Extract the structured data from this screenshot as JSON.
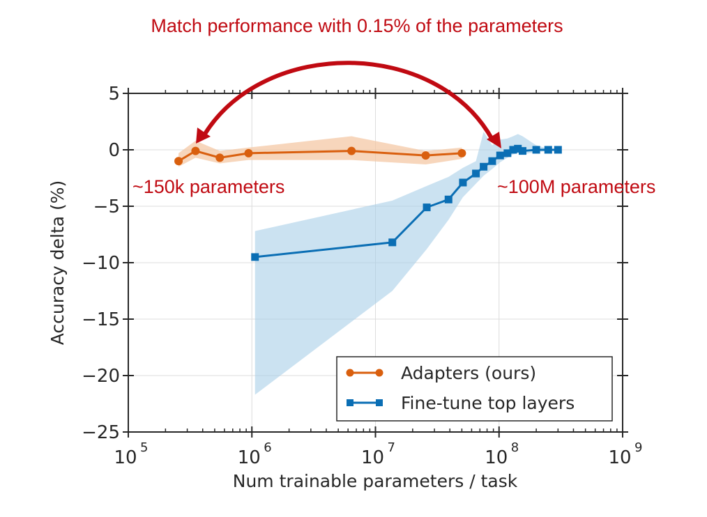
{
  "headline": "Match performance with 0.15% of the parameters",
  "annotations": {
    "left": "~150k parameters",
    "right": "~100M parameters"
  },
  "colors": {
    "adapters": "#d95f0e",
    "adapters_band": "#f4c8a6",
    "finetune": "#0a6eb4",
    "finetune_band": "#a9cfe8",
    "annotation": "#c00a12",
    "axis": "#262626",
    "grid": "#dcdcdc"
  },
  "chart_data": {
    "type": "line",
    "title": "Match performance with 0.15% of the parameters",
    "xlabel": "Num trainable parameters / task",
    "ylabel": "Accuracy delta (%)",
    "xscale": "log",
    "xlim": [
      100000,
      1000000000
    ],
    "ylim": [
      -25,
      5
    ],
    "xticks": [
      100000,
      1000000,
      10000000,
      100000000,
      1000000000
    ],
    "xtick_labels": [
      {
        "base": "10",
        "exp": "5"
      },
      {
        "base": "10",
        "exp": "6"
      },
      {
        "base": "10",
        "exp": "7"
      },
      {
        "base": "10",
        "exp": "8"
      },
      {
        "base": "10",
        "exp": "9"
      }
    ],
    "yticks": [
      5,
      0,
      -5,
      -10,
      -15,
      -20,
      -25
    ],
    "ytick_labels": [
      "5",
      "0",
      "−5",
      "−10",
      "−15",
      "−20",
      "−25"
    ],
    "grid": true,
    "legend_position": "lower right",
    "series": [
      {
        "name": "Adapters (ours)",
        "marker": "circle",
        "x": [
          255000,
          350000,
          550000,
          940000,
          6400000,
          25500000,
          50000000
        ],
        "y": [
          -1.0,
          -0.1,
          -0.7,
          -0.3,
          -0.1,
          -0.5,
          -0.3
        ],
        "band_upper": [
          -0.3,
          0.8,
          -0.1,
          0.2,
          1.2,
          -0.1,
          0.2
        ],
        "band_lower": [
          -1.5,
          -0.7,
          -1.2,
          -0.9,
          -0.9,
          -1.3,
          -0.8
        ]
      },
      {
        "name": "Fine-tune top layers",
        "marker": "square",
        "x": [
          1060000,
          13700000,
          26000000,
          39000000,
          51000000,
          65000000,
          75000000,
          88000000,
          102000000,
          117000000,
          130000000,
          142000000,
          155000000,
          200000000,
          250000000,
          300000000
        ],
        "y": [
          -9.5,
          -8.2,
          -5.1,
          -4.4,
          -2.9,
          -2.1,
          -1.5,
          -1.0,
          -0.5,
          -0.3,
          0.0,
          0.1,
          -0.1,
          0.0,
          0.0,
          0.0
        ],
        "band_upper": [
          -7.2,
          -4.5,
          -3.2,
          -2.4,
          -1.6,
          -1.0,
          1.6,
          0.4,
          0.9,
          1.0,
          1.2,
          1.4,
          1.2,
          0.4,
          0.1,
          0.1
        ],
        "band_lower": [
          -21.7,
          -12.5,
          -8.8,
          -6.2,
          -4.2,
          -3.0,
          -2.3,
          -1.7,
          -1.1,
          -0.7,
          -0.4,
          -0.3,
          -0.4,
          -0.2,
          -0.1,
          -0.1
        ]
      }
    ],
    "annotations": [
      {
        "text": "Match performance with 0.15% of the parameters",
        "type": "double-arrow",
        "from_x": 350000,
        "to_x": 102000000
      },
      {
        "text": "~150k parameters",
        "near_x": 150000
      },
      {
        "text": "~100M parameters",
        "near_x": 100000000
      }
    ]
  }
}
